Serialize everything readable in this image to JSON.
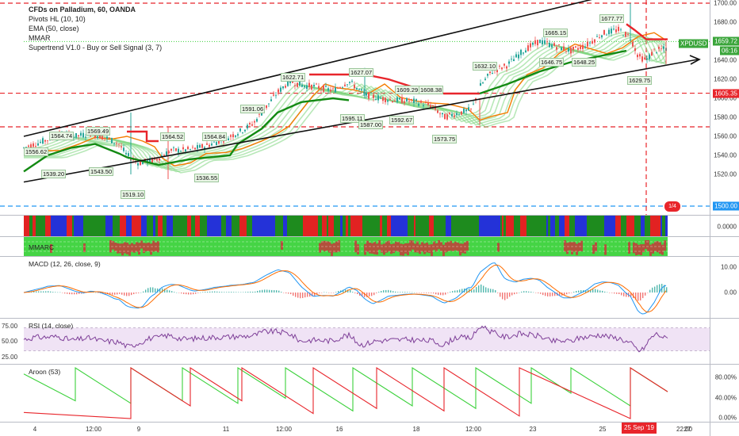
{
  "legend": {
    "title": "CFDs on Palladium, 60, OANDA",
    "pivots": "Pivots HL (10, 10)",
    "ema": "EMA (50, close)",
    "mmar": "MMAR",
    "supertrend": "Supertrend V1.0 - Buy or Sell Signal (3, 7)"
  },
  "price_axis": {
    "ticks": [
      "1700.00",
      "1680.00",
      "1660.00",
      "1640.00",
      "1620.00",
      "1600.00",
      "1580.00",
      "1560.00",
      "1540.00",
      "1520.00"
    ],
    "symbol": "XPDUSD",
    "last_price": "1659.72",
    "countdown": "06:16",
    "level_upper": "1605.35",
    "level_lower": "1500.00"
  },
  "pivot_labels": [
    "1556.62",
    "1564.74",
    "1569.49",
    "1539.20",
    "1543.50",
    "1519.10",
    "1564.52",
    "1564.84",
    "1536.55",
    "1591.06",
    "1622.71",
    "1627.07",
    "1595.11",
    "1587.00",
    "1609.29",
    "1608.38",
    "1592.67",
    "1573.75",
    "1632.10",
    "1665.15",
    "1646.75",
    "1648.25",
    "1677.77",
    "1629.75"
  ],
  "badge": "1/4",
  "strip_pane": {
    "value": "0.0000"
  },
  "mmar_pane": {
    "label": "MMARC"
  },
  "macd_pane": {
    "label": "MACD (12, 26, close, 9)",
    "ticks": [
      "10.00",
      "0.00"
    ]
  },
  "rsi_pane": {
    "label": "RSI (14, close)",
    "ticks": [
      "75.00",
      "50.00",
      "25.00"
    ]
  },
  "aroon_pane": {
    "label": "Aroon (53)",
    "ticks": [
      "80.00%",
      "40.00%",
      "0.00%"
    ]
  },
  "time_axis": {
    "labels": [
      "4",
      "12:00",
      "9",
      "11",
      "12:00",
      "16",
      "18",
      "12:00",
      "23",
      "25",
      "27"
    ],
    "highlight": "25 Sep '19",
    "highlight_time": "22:00"
  },
  "colors": {
    "bull": "#26a69a",
    "bear": "#ef5350",
    "supertrend_up": "#138a13",
    "supertrend_down": "#e8252b",
    "ema": "#f57c00",
    "ribbon": "#7ed67e",
    "macd": "#2196f3",
    "signal": "#ff6d00",
    "rsi": "#7e3f98",
    "aroon_up": "#3bd13b",
    "aroon_down": "#e8252b",
    "strip_green": "#1e8b1e",
    "strip_blue": "#2432d8",
    "strip_red": "#e22222"
  }
}
